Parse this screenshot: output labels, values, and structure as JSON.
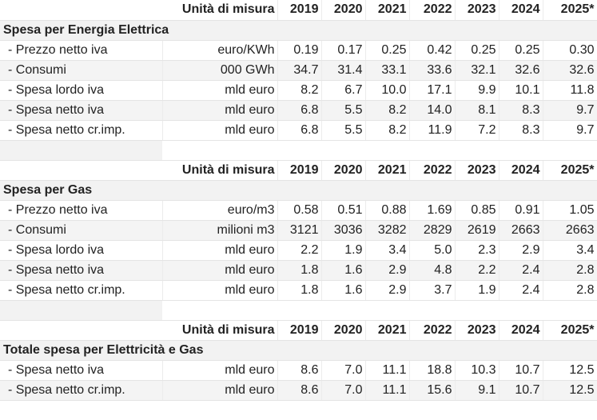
{
  "header": {
    "unit_label": "Unità di misura",
    "years": [
      "2019",
      "2020",
      "2021",
      "2022",
      "2023",
      "2024",
      "2025*"
    ]
  },
  "sections": [
    {
      "title": "Spesa per Energia Elettrica",
      "rows": [
        {
          "label": "- Prezzo netto iva",
          "unit": "euro/KWh",
          "values": [
            "0.19",
            "0.17",
            "0.25",
            "0.42",
            "0.25",
            "0.25",
            "0.30"
          ]
        },
        {
          "label": "- Consumi",
          "unit": "000 GWh",
          "values": [
            "34.7",
            "31.4",
            "33.1",
            "33.6",
            "32.1",
            "32.6",
            "32.6"
          ]
        },
        {
          "label": "- Spesa lordo iva",
          "unit": "mld euro",
          "values": [
            "8.2",
            "6.7",
            "10.0",
            "17.1",
            "9.9",
            "10.1",
            "11.8"
          ]
        },
        {
          "label": "- Spesa netto iva",
          "unit": "mld euro",
          "values": [
            "6.8",
            "5.5",
            "8.2",
            "14.0",
            "8.1",
            "8.3",
            "9.7"
          ]
        },
        {
          "label": "- Spesa netto cr.imp.",
          "unit": "mld euro",
          "values": [
            "6.8",
            "5.5",
            "8.2",
            "11.9",
            "7.2",
            "8.3",
            "9.7"
          ]
        }
      ]
    },
    {
      "title": "Spesa per Gas",
      "rows": [
        {
          "label": "- Prezzo netto iva",
          "unit": "euro/m3",
          "values": [
            "0.58",
            "0.51",
            "0.88",
            "1.69",
            "0.85",
            "0.91",
            "1.05"
          ]
        },
        {
          "label": "- Consumi",
          "unit": "milioni m3",
          "values": [
            "3121",
            "3036",
            "3282",
            "2829",
            "2619",
            "2663",
            "2663"
          ]
        },
        {
          "label": "- Spesa lordo iva",
          "unit": "mld euro",
          "values": [
            "2.2",
            "1.9",
            "3.4",
            "5.0",
            "2.3",
            "2.9",
            "3.4"
          ]
        },
        {
          "label": "- Spesa netto iva",
          "unit": "mld euro",
          "values": [
            "1.8",
            "1.6",
            "2.9",
            "4.8",
            "2.2",
            "2.4",
            "2.8"
          ]
        },
        {
          "label": "- Spesa netto cr.imp.",
          "unit": "mld euro",
          "values": [
            "1.8",
            "1.6",
            "2.9",
            "3.7",
            "1.9",
            "2.4",
            "2.8"
          ]
        }
      ]
    },
    {
      "title": "Totale spesa per Elettricità e Gas",
      "rows": [
        {
          "label": "- Spesa netto iva",
          "unit": "mld euro",
          "values": [
            "8.6",
            "7.0",
            "11.1",
            "18.8",
            "10.3",
            "10.7",
            "12.5"
          ]
        },
        {
          "label": "- Spesa netto cr.imp.",
          "unit": "mld euro",
          "values": [
            "8.6",
            "7.0",
            "11.1",
            "15.6",
            "9.1",
            "10.7",
            "12.5"
          ]
        }
      ]
    }
  ]
}
